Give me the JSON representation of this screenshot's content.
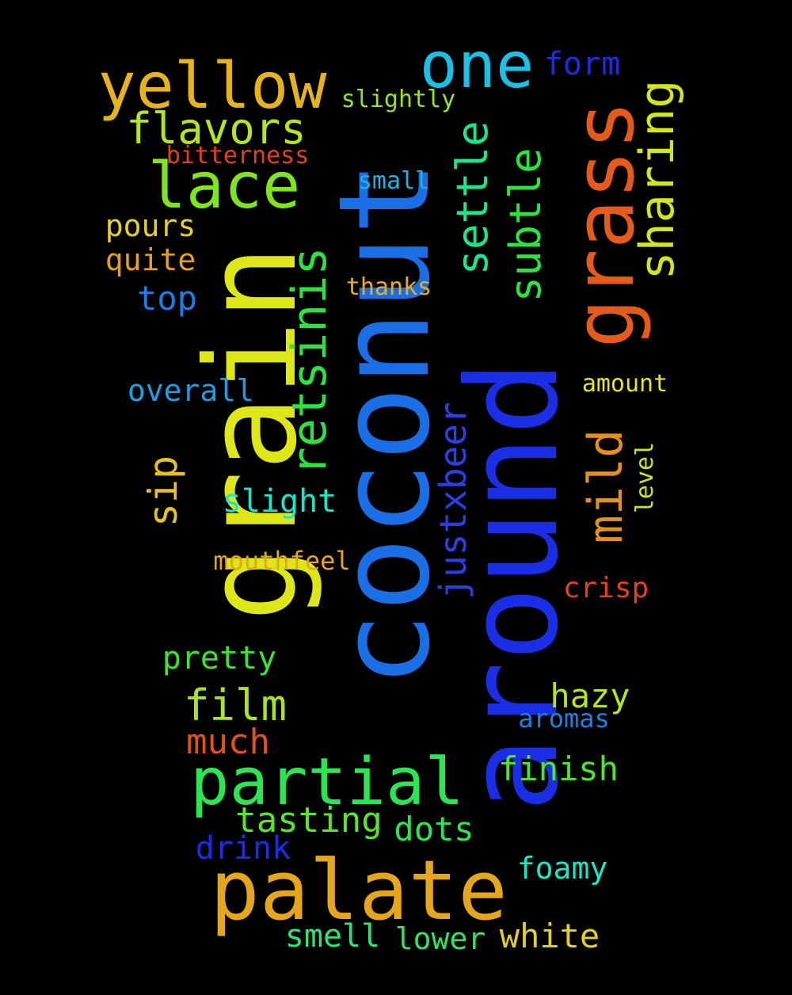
{
  "words": [
    {
      "text": "coconut",
      "color": "#1a6fe6"
    },
    {
      "text": "around",
      "color": "#1a2ee6"
    },
    {
      "text": "grain",
      "color": "#dde616"
    },
    {
      "text": "palate",
      "color": "#e6a61a"
    },
    {
      "text": "grass",
      "color": "#e65a1a"
    },
    {
      "text": "partial",
      "color": "#2ae650"
    },
    {
      "text": "yellow",
      "color": "#e6b41a"
    },
    {
      "text": "one",
      "color": "#1ac0e6"
    },
    {
      "text": "lace",
      "color": "#7ee61a"
    },
    {
      "text": "retsinis",
      "color": "#2ae63c"
    },
    {
      "text": "sharing",
      "color": "#d2e61a"
    },
    {
      "text": "mild",
      "color": "#e6901a"
    },
    {
      "text": "settle",
      "color": "#1ae68a"
    },
    {
      "text": "subtle",
      "color": "#2ae63c"
    },
    {
      "text": "justxbeer",
      "color": "#2a40e6"
    },
    {
      "text": "flavors",
      "color": "#b4e61a"
    },
    {
      "text": "film",
      "color": "#a6e61a"
    },
    {
      "text": "form",
      "color": "#1a2ee6"
    },
    {
      "text": "sip",
      "color": "#e6c21a"
    },
    {
      "text": "slightly",
      "color": "#96e61a"
    },
    {
      "text": "bitterness",
      "color": "#e6401a"
    },
    {
      "text": "small",
      "color": "#1ab4e6"
    },
    {
      "text": "pours",
      "color": "#e6d21a"
    },
    {
      "text": "quite",
      "color": "#e6a01a"
    },
    {
      "text": "top",
      "color": "#1a7ee6"
    },
    {
      "text": "thanks",
      "color": "#e6b01a"
    },
    {
      "text": "overall",
      "color": "#1a9ee6"
    },
    {
      "text": "amount",
      "color": "#e6e61a"
    },
    {
      "text": "slight",
      "color": "#1ae6c8"
    },
    {
      "text": "level",
      "color": "#c8e61a"
    },
    {
      "text": "mouthfeel",
      "color": "#e6a61a"
    },
    {
      "text": "crisp",
      "color": "#e6401a"
    },
    {
      "text": "pretty",
      "color": "#3ae62a"
    },
    {
      "text": "hazy",
      "color": "#b4e61a"
    },
    {
      "text": "aromas",
      "color": "#1a82e6"
    },
    {
      "text": "much",
      "color": "#e6501a"
    },
    {
      "text": "finish",
      "color": "#4ce62a"
    },
    {
      "text": "tasting",
      "color": "#5ae62a"
    },
    {
      "text": "dots",
      "color": "#2ae650"
    },
    {
      "text": "drink",
      "color": "#1a2ee6"
    },
    {
      "text": "foamy",
      "color": "#1ae6c8"
    },
    {
      "text": "smell",
      "color": "#2ae670"
    },
    {
      "text": "lower",
      "color": "#2ae660"
    },
    {
      "text": "white",
      "color": "#e6d21a"
    }
  ]
}
